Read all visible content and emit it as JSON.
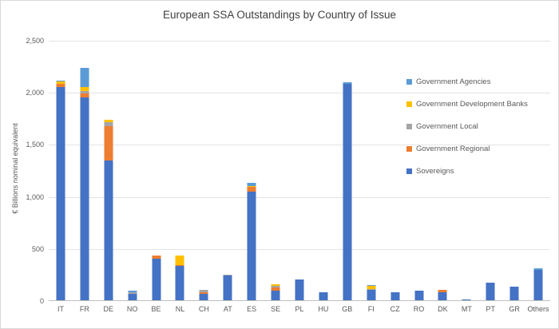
{
  "chart_data": {
    "type": "bar",
    "stacked": true,
    "title": "European SSA Outstandings by Country of Issue",
    "ylabel": "€ Billions nominal equivalent",
    "ylim": [
      0,
      2500
    ],
    "ytick_interval": 500,
    "yticks": [
      "0",
      "500",
      "1,000",
      "1,500",
      "2,000",
      "2,500"
    ],
    "categories": [
      "IT",
      "FR",
      "DE",
      "NO",
      "BE",
      "NL",
      "CH",
      "AT",
      "ES",
      "SE",
      "PL",
      "HU",
      "GB",
      "FI",
      "CZ",
      "RO",
      "DK",
      "MT",
      "PT",
      "GR",
      "Others"
    ],
    "series": [
      {
        "name": "Sovereigns",
        "color": "#4472C4",
        "values": [
          2050,
          1950,
          1340,
          60,
          400,
          330,
          60,
          235,
          1040,
          90,
          200,
          80,
          2080,
          100,
          80,
          90,
          80,
          5,
          170,
          130,
          290
        ]
      },
      {
        "name": "Government Regional",
        "color": "#ED7D31",
        "values": [
          30,
          40,
          330,
          0,
          30,
          10,
          20,
          0,
          50,
          30,
          0,
          0,
          0,
          0,
          0,
          0,
          20,
          0,
          0,
          0,
          0
        ]
      },
      {
        "name": "Government Local",
        "color": "#A5A5A5",
        "values": [
          0,
          20,
          40,
          20,
          0,
          0,
          20,
          10,
          0,
          15,
          0,
          0,
          0,
          5,
          0,
          0,
          0,
          0,
          0,
          0,
          0
        ]
      },
      {
        "name": "Government Development Banks",
        "color": "#FFC000",
        "values": [
          20,
          40,
          20,
          0,
          0,
          90,
          0,
          0,
          10,
          15,
          0,
          0,
          0,
          30,
          0,
          0,
          0,
          0,
          0,
          0,
          0
        ]
      },
      {
        "name": "Government Agencies",
        "color": "#5B9BD5",
        "values": [
          10,
          180,
          0,
          10,
          0,
          0,
          0,
          0,
          30,
          0,
          0,
          0,
          10,
          10,
          0,
          0,
          0,
          0,
          0,
          0,
          15
        ]
      }
    ],
    "legend": [
      "Government Agencies",
      "Government Development Banks",
      "Government Local",
      "Government Regional",
      "Sovereigns"
    ],
    "legend_position": "right-inside",
    "grid": true
  }
}
